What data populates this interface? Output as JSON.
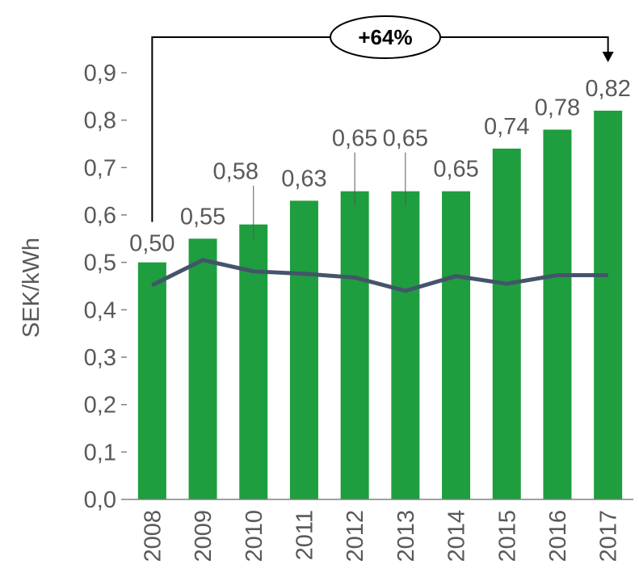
{
  "chart_data": {
    "type": "bar",
    "categories": [
      "2008",
      "2009",
      "2010",
      "2011",
      "2012",
      "2013",
      "2014",
      "2015",
      "2016",
      "2017"
    ],
    "series": [
      {
        "values": [
          0.5,
          0.55,
          0.58,
          0.63,
          0.65,
          0.65,
          0.65,
          0.74,
          0.78,
          0.82
        ],
        "color": "#1e9e3e",
        "type": "bar"
      },
      {
        "values": [
          0.452,
          0.505,
          0.481,
          0.476,
          0.468,
          0.44,
          0.471,
          0.455,
          0.473,
          0.473
        ],
        "color": "#44546a",
        "type": "line"
      }
    ],
    "data_labels": [
      "0,50",
      "0,55",
      "0,58",
      "0,63",
      "0,65",
      "0,65",
      "0,65",
      "0,74",
      "0,78",
      "0,82"
    ],
    "ylabel": "SEK/kWh",
    "xlabel": "",
    "ylim": [
      0,
      0.9
    ],
    "yticks": [
      "0,0",
      "0,1",
      "0,2",
      "0,3",
      "0,4",
      "0,5",
      "0,6",
      "0,7",
      "0,8",
      "0,9"
    ],
    "grid": false,
    "legend": "none",
    "annotation": {
      "text": "+64%",
      "from": "2008",
      "to": "2017"
    }
  }
}
